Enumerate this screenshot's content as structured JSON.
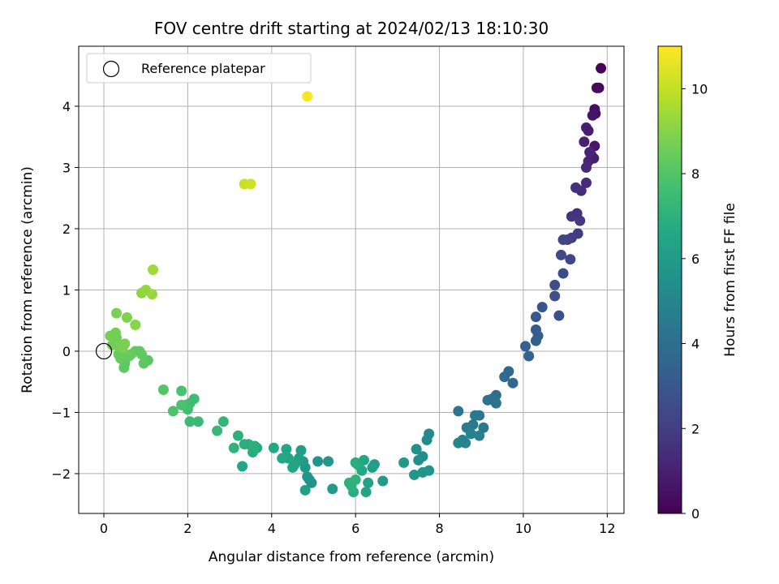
{
  "chart_data": {
    "type": "scatter",
    "title": "FOV centre drift starting at 2024/02/13 18:10:30",
    "xlabel": "Angular distance from reference (arcmin)",
    "ylabel": "Rotation from reference (arcmin)",
    "xlim": [
      -0.6,
      12.4
    ],
    "ylim": [
      -2.65,
      4.98
    ],
    "xticks": [
      0,
      2,
      4,
      6,
      8,
      10,
      12
    ],
    "yticks": [
      -2,
      -1,
      0,
      1,
      2,
      3,
      4
    ],
    "grid": true,
    "legend": {
      "placement": "top-left",
      "entries": [
        "Reference platepar"
      ]
    },
    "reference_point": {
      "x": 0,
      "y": 0
    },
    "colorbar": {
      "label": "Hours from first FF file",
      "range": [
        0,
        11
      ],
      "ticks": [
        0,
        2,
        4,
        6,
        8,
        10
      ],
      "colormap": "viridis"
    },
    "series": [
      {
        "marker": "circle",
        "points": [
          [
            11.85,
            4.62,
            0.1
          ],
          [
            11.8,
            4.3,
            0.2
          ],
          [
            11.75,
            4.3,
            0.3
          ],
          [
            11.7,
            3.95,
            0.4
          ],
          [
            11.72,
            3.88,
            0.5
          ],
          [
            11.65,
            3.85,
            0.6
          ],
          [
            11.7,
            3.35,
            0.7
          ],
          [
            11.62,
            3.2,
            0.8
          ],
          [
            11.68,
            3.15,
            0.9
          ],
          [
            11.55,
            3.1,
            1.0
          ],
          [
            11.58,
            3.25,
            1.1
          ],
          [
            11.5,
            3.0,
            1.2
          ],
          [
            11.5,
            2.75,
            1.3
          ],
          [
            11.5,
            3.65,
            1.0
          ],
          [
            11.55,
            3.6,
            0.9
          ],
          [
            11.45,
            3.42,
            1.0
          ],
          [
            11.38,
            2.62,
            1.4
          ],
          [
            11.25,
            2.67,
            1.5
          ],
          [
            11.28,
            2.25,
            1.6
          ],
          [
            11.15,
            2.2,
            1.7
          ],
          [
            11.35,
            2.13,
            1.8
          ],
          [
            11.3,
            1.92,
            1.9
          ],
          [
            11.15,
            1.85,
            2.0
          ],
          [
            11.05,
            1.82,
            2.1
          ],
          [
            10.95,
            1.82,
            2.2
          ],
          [
            11.12,
            1.5,
            2.3
          ],
          [
            10.9,
            1.57,
            2.4
          ],
          [
            10.95,
            1.27,
            2.5
          ],
          [
            10.75,
            1.08,
            2.6
          ],
          [
            10.75,
            0.9,
            2.7
          ],
          [
            10.85,
            0.58,
            2.8
          ],
          [
            10.45,
            0.72,
            2.9
          ],
          [
            10.3,
            0.56,
            3.0
          ],
          [
            10.3,
            0.35,
            3.1
          ],
          [
            10.35,
            0.25,
            3.2
          ],
          [
            10.3,
            0.17,
            3.3
          ],
          [
            10.05,
            0.08,
            3.4
          ],
          [
            10.13,
            -0.08,
            3.5
          ],
          [
            9.75,
            -0.52,
            3.6
          ],
          [
            9.65,
            -0.33,
            3.7
          ],
          [
            9.55,
            -0.42,
            3.8
          ],
          [
            9.35,
            -0.72,
            3.9
          ],
          [
            9.25,
            -0.78,
            4.0
          ],
          [
            9.15,
            -0.8,
            4.1
          ],
          [
            9.35,
            -0.85,
            4.2
          ],
          [
            8.95,
            -1.05,
            4.3
          ],
          [
            9.05,
            -1.25,
            4.4
          ],
          [
            8.8,
            -1.2,
            4.5
          ],
          [
            8.85,
            -1.05,
            4.4
          ],
          [
            8.65,
            -1.25,
            4.6
          ],
          [
            8.95,
            -1.38,
            4.7
          ],
          [
            8.75,
            -1.35,
            4.8
          ],
          [
            8.55,
            -1.45,
            4.9
          ],
          [
            8.45,
            -1.5,
            5.0
          ],
          [
            8.45,
            -0.98,
            4.3
          ],
          [
            8.62,
            -1.5,
            4.9
          ],
          [
            7.75,
            -1.35,
            5.1
          ],
          [
            7.7,
            -1.45,
            5.2
          ],
          [
            7.6,
            -1.72,
            5.3
          ],
          [
            7.5,
            -1.78,
            5.4
          ],
          [
            7.45,
            -1.6,
            5.5
          ],
          [
            7.75,
            -1.95,
            5.6
          ],
          [
            7.6,
            -1.98,
            5.7
          ],
          [
            7.4,
            -2.02,
            5.8
          ],
          [
            7.15,
            -1.82,
            5.9
          ],
          [
            6.65,
            -2.12,
            6.0
          ],
          [
            6.45,
            -1.85,
            6.1
          ],
          [
            6.4,
            -1.9,
            6.2
          ],
          [
            6.3,
            -2.15,
            6.3
          ],
          [
            6.25,
            -2.3,
            6.4
          ],
          [
            6.2,
            -1.78,
            6.5
          ],
          [
            6.15,
            -1.95,
            6.6
          ],
          [
            6.05,
            -1.85,
            6.7
          ],
          [
            6.0,
            -1.82,
            6.8
          ],
          [
            5.95,
            -2.3,
            6.9
          ],
          [
            5.9,
            -2.2,
            7.0
          ],
          [
            5.85,
            -2.15,
            7.0
          ],
          [
            6.0,
            -2.1,
            7.1
          ],
          [
            5.45,
            -2.25,
            6.0
          ],
          [
            5.35,
            -1.8,
            5.8
          ],
          [
            5.1,
            -1.8,
            5.7
          ],
          [
            4.95,
            -2.15,
            5.6
          ],
          [
            4.9,
            -2.1,
            5.7
          ],
          [
            4.85,
            -2.05,
            5.8
          ],
          [
            4.8,
            -1.9,
            5.9
          ],
          [
            4.75,
            -1.8,
            6.0
          ],
          [
            4.7,
            -1.62,
            6.1
          ],
          [
            4.65,
            -1.75,
            6.2
          ],
          [
            4.55,
            -1.85,
            6.3
          ],
          [
            4.5,
            -1.9,
            6.4
          ],
          [
            4.4,
            -1.75,
            6.5
          ],
          [
            4.35,
            -1.6,
            6.5
          ],
          [
            4.25,
            -1.75,
            6.6
          ],
          [
            4.05,
            -1.58,
            6.6
          ],
          [
            4.8,
            -2.27,
            6.2
          ],
          [
            3.65,
            -1.58,
            6.7
          ],
          [
            3.6,
            -1.55,
            6.8
          ],
          [
            3.55,
            -1.65,
            6.9
          ],
          [
            3.45,
            -1.52,
            7.0
          ],
          [
            3.3,
            -1.88,
            6.5
          ],
          [
            3.35,
            -1.52,
            6.9
          ],
          [
            3.2,
            -1.38,
            7.0
          ],
          [
            3.1,
            -1.58,
            7.1
          ],
          [
            2.85,
            -1.15,
            7.2
          ],
          [
            2.7,
            -1.3,
            7.3
          ],
          [
            2.25,
            -1.15,
            7.4
          ],
          [
            2.15,
            -0.78,
            7.5
          ],
          [
            2.05,
            -0.85,
            7.6
          ],
          [
            2.0,
            -0.95,
            7.6
          ],
          [
            1.95,
            -0.88,
            7.7
          ],
          [
            1.85,
            -0.65,
            7.8
          ],
          [
            1.85,
            -0.88,
            7.8
          ],
          [
            1.65,
            -0.98,
            7.9
          ],
          [
            1.42,
            -0.63,
            8.0
          ],
          [
            2.05,
            -1.15,
            7.4
          ],
          [
            1.05,
            -0.15,
            8.1
          ],
          [
            0.95,
            -0.2,
            8.2
          ],
          [
            0.9,
            -0.05,
            8.3
          ],
          [
            0.75,
            0.0,
            8.3
          ],
          [
            0.65,
            -0.05,
            8.4
          ],
          [
            0.55,
            -0.1,
            8.5
          ],
          [
            0.5,
            -0.2,
            8.3
          ],
          [
            0.48,
            -0.27,
            8.2
          ],
          [
            0.4,
            -0.12,
            8.4
          ],
          [
            0.35,
            -0.05,
            8.4
          ],
          [
            0.3,
            0.1,
            8.5
          ],
          [
            0.25,
            0.15,
            8.6
          ],
          [
            0.2,
            0.1,
            8.6
          ],
          [
            0.15,
            0.25,
            8.7
          ],
          [
            0.3,
            0.22,
            8.6
          ],
          [
            0.35,
            0.08,
            8.7
          ],
          [
            0.45,
            0.05,
            8.8
          ],
          [
            0.5,
            0.12,
            8.8
          ],
          [
            0.28,
            0.3,
            8.7
          ],
          [
            0.3,
            0.62,
            8.8
          ],
          [
            0.55,
            0.55,
            8.9
          ],
          [
            0.75,
            0.43,
            9.0
          ],
          [
            0.9,
            0.95,
            9.1
          ],
          [
            1.0,
            1.0,
            9.2
          ],
          [
            1.15,
            0.93,
            9.3
          ],
          [
            1.17,
            1.33,
            9.4
          ],
          [
            0.85,
            0.0,
            8.3
          ],
          [
            0.6,
            -0.08,
            8.4
          ],
          [
            3.35,
            2.73,
            10.1
          ],
          [
            3.5,
            2.73,
            10.2
          ],
          [
            4.85,
            4.16,
            10.9
          ]
        ]
      }
    ]
  }
}
